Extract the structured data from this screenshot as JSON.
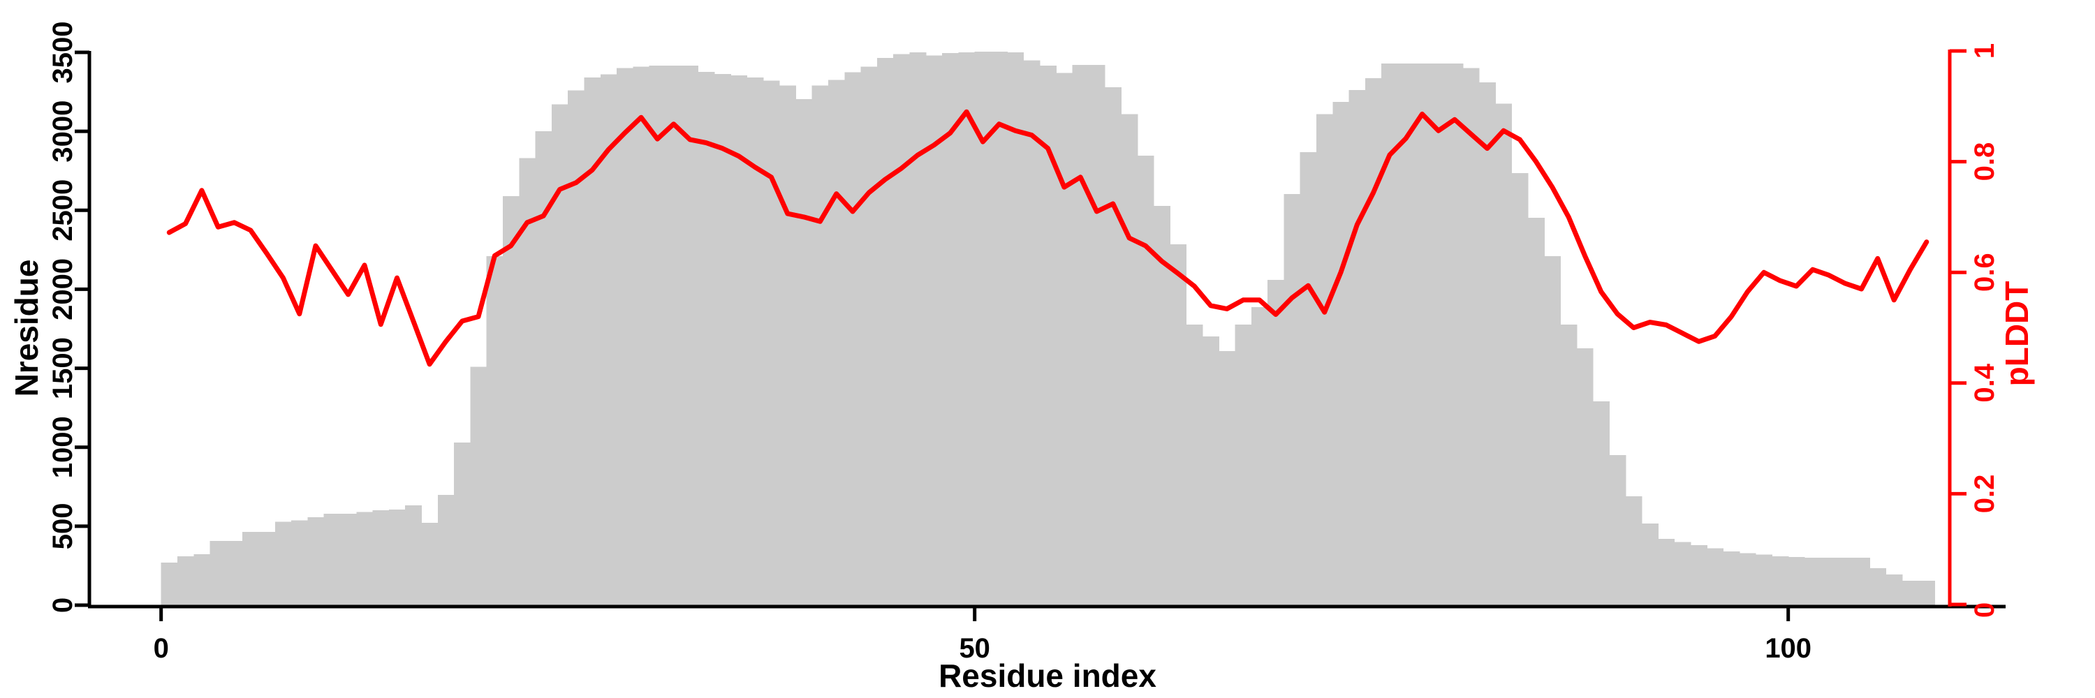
{
  "chart_data": {
    "type": "bar+line",
    "title": "",
    "x_label": "Residue index",
    "x_ticks": {
      "values": [
        0,
        50,
        100
      ],
      "labels": [
        "0",
        "50",
        "100"
      ]
    },
    "x_range": [
      0,
      109
    ],
    "grid": false,
    "legend": false,
    "background": "#ffffff",
    "y_left": {
      "label": "Nresidue",
      "range": [
        0,
        3500
      ],
      "tick_values": [
        0,
        500,
        1000,
        1500,
        2000,
        2500,
        3000,
        3500
      ],
      "tick_labels": [
        "0",
        "500",
        "1000",
        "1500",
        "2000",
        "2500",
        "3000",
        "3500"
      ],
      "color": "#000000"
    },
    "y_right": {
      "label": "pLDDT",
      "range": [
        0,
        1
      ],
      "tick_values": [
        0,
        0.2,
        0.4,
        0.6,
        0.8,
        1
      ],
      "tick_labels": [
        "0",
        "0.2",
        "0.4",
        "0.6",
        "0.8",
        "1"
      ],
      "color": "#ff0000"
    },
    "series": [
      {
        "name": "Nresidue",
        "type": "bar",
        "axis": "left",
        "color": "#cccccc",
        "x_start": 0,
        "values": [
          270,
          310,
          322,
          406,
          406,
          463,
          463,
          529,
          538,
          556,
          578,
          578,
          591,
          600,
          605,
          632,
          521,
          698,
          1030,
          1510,
          2210,
          2590,
          2830,
          3000,
          3170,
          3260,
          3340,
          3360,
          3400,
          3410,
          3415,
          3415,
          3415,
          3377,
          3363,
          3355,
          3340,
          3320,
          3290,
          3205,
          3290,
          3325,
          3375,
          3410,
          3465,
          3490,
          3500,
          3480,
          3495,
          3500,
          3505,
          3505,
          3500,
          3450,
          3415,
          3370,
          3420,
          3420,
          3280,
          3110,
          2846,
          2528,
          2284,
          1776,
          1701,
          1608,
          1776,
          1888,
          2060,
          2604,
          2868,
          3110,
          3186,
          3261,
          3337,
          3430,
          3430,
          3430,
          3430,
          3430,
          3400,
          3310,
          3175,
          2736,
          2453,
          2210,
          1776,
          1626,
          1290,
          950,
          689,
          517,
          420,
          400,
          380,
          360,
          340,
          330,
          320,
          310,
          305,
          300,
          300,
          300,
          300,
          235,
          195,
          155,
          155
        ]
      },
      {
        "name": "pLDDT",
        "type": "line",
        "axis": "right",
        "color": "#ff0000",
        "x_start": 0,
        "values": [
          0.672,
          0.688,
          0.748,
          0.682,
          0.69,
          0.676,
          0.634,
          0.59,
          0.525,
          0.648,
          0.604,
          0.56,
          0.613,
          0.506,
          0.59,
          0.512,
          0.434,
          0.475,
          0.512,
          0.52,
          0.63,
          0.648,
          0.69,
          0.702,
          0.75,
          0.762,
          0.785,
          0.822,
          0.852,
          0.88,
          0.841,
          0.868,
          0.84,
          0.834,
          0.824,
          0.81,
          0.79,
          0.772,
          0.706,
          0.7,
          0.692,
          0.742,
          0.71,
          0.744,
          0.768,
          0.788,
          0.812,
          0.83,
          0.852,
          0.89,
          0.836,
          0.868,
          0.856,
          0.848,
          0.824,
          0.754,
          0.772,
          0.71,
          0.724,
          0.662,
          0.648,
          0.62,
          0.598,
          0.575,
          0.54,
          0.534,
          0.55,
          0.55,
          0.524,
          0.554,
          0.576,
          0.528,
          0.6,
          0.686,
          0.744,
          0.812,
          0.842,
          0.886,
          0.856,
          0.876,
          0.85,
          0.824,
          0.856,
          0.84,
          0.8,
          0.754,
          0.7,
          0.63,
          0.565,
          0.525,
          0.5,
          0.51,
          0.505,
          0.49,
          0.475,
          0.485,
          0.52,
          0.565,
          0.6,
          0.585,
          0.575,
          0.605,
          0.595,
          0.58,
          0.57,
          0.625,
          0.55,
          0.605,
          0.655
        ]
      }
    ]
  }
}
